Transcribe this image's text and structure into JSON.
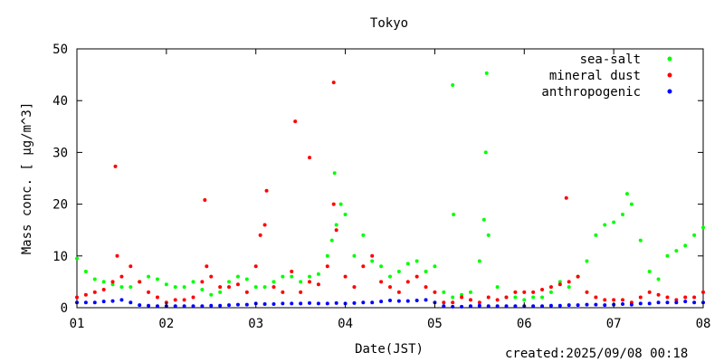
{
  "chart_data": {
    "type": "scatter",
    "title": "Tokyo",
    "xlabel": "Date(JST)",
    "ylabel": "Mass conc. [ μg/m^3]",
    "xlim": [
      1,
      8
    ],
    "ylim": [
      0,
      50
    ],
    "x_ticks": [
      "01",
      "02",
      "03",
      "04",
      "05",
      "06",
      "07",
      "08"
    ],
    "y_ticks": [
      "0",
      "10",
      "20",
      "30",
      "40",
      "50"
    ],
    "grid": false,
    "legend_position": "top-right",
    "series": [
      {
        "name": "sea-salt",
        "color": "#00ff00",
        "x": [
          1.0,
          1.1,
          1.2,
          1.3,
          1.4,
          1.5,
          1.6,
          1.7,
          1.8,
          1.9,
          2.0,
          2.1,
          2.2,
          2.3,
          2.4,
          2.5,
          2.6,
          2.7,
          2.8,
          2.9,
          3.0,
          3.1,
          3.2,
          3.3,
          3.4,
          3.5,
          3.6,
          3.7,
          3.8,
          3.85,
          3.9,
          3.95,
          4.0,
          4.1,
          4.2,
          4.3,
          4.4,
          4.5,
          4.6,
          4.7,
          4.8,
          4.9,
          5.0,
          5.1,
          5.2,
          5.3,
          5.4,
          5.5,
          5.55,
          5.6,
          5.7,
          5.8,
          5.9,
          6.0,
          6.1,
          6.2,
          6.3,
          6.4,
          6.5,
          6.6,
          6.7,
          6.8,
          6.9,
          7.0,
          7.1,
          7.15,
          7.2,
          7.3,
          7.4,
          7.5,
          7.6,
          7.7,
          7.8,
          7.9,
          8.0,
          5.2,
          5.58,
          5.57,
          5.21,
          3.88
        ],
        "y": [
          9.5,
          7.0,
          5.5,
          5.0,
          4.5,
          4.0,
          4.0,
          5.0,
          6.0,
          5.5,
          4.5,
          4.0,
          4.0,
          5.0,
          3.5,
          2.5,
          3.0,
          5.0,
          6.0,
          5.5,
          4.0,
          4.0,
          5.0,
          6.0,
          6.0,
          5.0,
          6.0,
          6.5,
          10.0,
          13.0,
          16.0,
          20.0,
          18.0,
          10.0,
          14.0,
          9.0,
          8.0,
          6.0,
          7.0,
          8.5,
          9.0,
          7.0,
          8.0,
          3.0,
          2.0,
          2.5,
          3.0,
          9.0,
          17.0,
          14.0,
          4.0,
          2.0,
          2.0,
          1.5,
          2.0,
          2.0,
          3.0,
          5.0,
          4.0,
          6.0,
          9.0,
          14.0,
          16.0,
          16.5,
          18.0,
          22.0,
          20.0,
          13.0,
          7.0,
          5.5,
          10.0,
          11.0,
          12.0,
          14.0,
          15.5,
          43.0,
          45.3,
          30.0,
          18.0,
          26.0
        ]
      },
      {
        "name": "mineral dust",
        "color": "#ff0000",
        "x": [
          1.0,
          1.1,
          1.2,
          1.3,
          1.4,
          1.45,
          1.5,
          1.6,
          1.7,
          1.8,
          1.9,
          2.0,
          2.1,
          2.2,
          2.3,
          2.4,
          2.45,
          2.5,
          2.6,
          2.7,
          2.8,
          2.9,
          3.0,
          3.05,
          3.1,
          3.2,
          3.3,
          3.4,
          3.5,
          3.6,
          3.7,
          3.8,
          3.87,
          3.9,
          4.0,
          4.1,
          4.2,
          4.3,
          4.4,
          4.5,
          4.6,
          4.7,
          4.8,
          4.9,
          5.0,
          5.1,
          5.2,
          5.3,
          5.4,
          5.5,
          5.6,
          5.7,
          5.8,
          5.9,
          6.0,
          6.1,
          6.2,
          6.3,
          6.4,
          6.5,
          6.6,
          6.7,
          6.8,
          6.9,
          7.0,
          7.1,
          7.2,
          7.3,
          7.4,
          7.5,
          7.6,
          7.7,
          7.8,
          7.9,
          8.0,
          3.87,
          3.44,
          3.6,
          1.43,
          2.43,
          3.12,
          6.47
        ],
        "y": [
          2.0,
          2.5,
          3.0,
          3.5,
          5.0,
          10.0,
          6.0,
          8.0,
          5.0,
          3.0,
          2.0,
          1.0,
          1.5,
          1.5,
          2.0,
          5.0,
          8.0,
          6.0,
          4.0,
          4.0,
          4.5,
          3.0,
          8.0,
          14.0,
          16.0,
          4.0,
          3.0,
          7.0,
          3.0,
          5.0,
          4.5,
          8.0,
          20.0,
          15.0,
          6.0,
          4.0,
          8.0,
          10.0,
          5.0,
          4.0,
          3.0,
          5.0,
          6.0,
          4.0,
          3.0,
          1.0,
          1.0,
          2.0,
          1.5,
          1.0,
          2.0,
          1.5,
          2.0,
          3.0,
          3.0,
          3.0,
          3.5,
          4.0,
          4.5,
          5.0,
          6.0,
          3.0,
          2.0,
          1.5,
          1.5,
          1.5,
          1.0,
          2.0,
          3.0,
          2.5,
          2.0,
          1.5,
          2.0,
          2.0,
          3.0,
          43.5,
          36.0,
          29.0,
          27.3,
          20.8,
          22.6,
          21.2
        ]
      },
      {
        "name": "anthropogenic",
        "color": "#0000ff",
        "x": [
          1.0,
          1.1,
          1.2,
          1.3,
          1.4,
          1.5,
          1.6,
          1.7,
          1.8,
          1.9,
          2.0,
          2.1,
          2.2,
          2.3,
          2.4,
          2.5,
          2.6,
          2.7,
          2.8,
          2.9,
          3.0,
          3.1,
          3.2,
          3.3,
          3.4,
          3.5,
          3.6,
          3.7,
          3.8,
          3.9,
          4.0,
          4.1,
          4.2,
          4.3,
          4.4,
          4.5,
          4.6,
          4.7,
          4.8,
          4.9,
          5.0,
          5.1,
          5.2,
          5.3,
          5.4,
          5.5,
          5.6,
          5.7,
          5.8,
          5.9,
          6.0,
          6.1,
          6.2,
          6.3,
          6.4,
          6.5,
          6.6,
          6.7,
          6.8,
          6.9,
          7.0,
          7.1,
          7.2,
          7.3,
          7.4,
          7.5,
          7.6,
          7.7,
          7.8,
          7.9,
          8.0
        ],
        "y": [
          1.0,
          1.0,
          1.0,
          1.2,
          1.3,
          1.5,
          1.0,
          0.5,
          0.4,
          0.3,
          0.3,
          0.3,
          0.3,
          0.3,
          0.3,
          0.4,
          0.4,
          0.5,
          0.6,
          0.6,
          0.8,
          0.7,
          0.7,
          0.8,
          0.8,
          0.8,
          0.9,
          0.8,
          0.8,
          0.9,
          0.8,
          0.9,
          1.0,
          1.0,
          1.2,
          1.4,
          1.3,
          1.3,
          1.4,
          1.5,
          1.0,
          0.3,
          0.2,
          0.2,
          0.3,
          0.4,
          0.3,
          0.3,
          0.3,
          0.3,
          0.3,
          0.3,
          0.3,
          0.4,
          0.4,
          0.5,
          0.5,
          0.6,
          0.6,
          0.5,
          0.6,
          0.7,
          0.6,
          0.8,
          0.8,
          1.0,
          1.0,
          1.0,
          1.2,
          1.0,
          1.0
        ]
      }
    ]
  },
  "footer": {
    "created": "created:2025/09/08 00:18"
  }
}
